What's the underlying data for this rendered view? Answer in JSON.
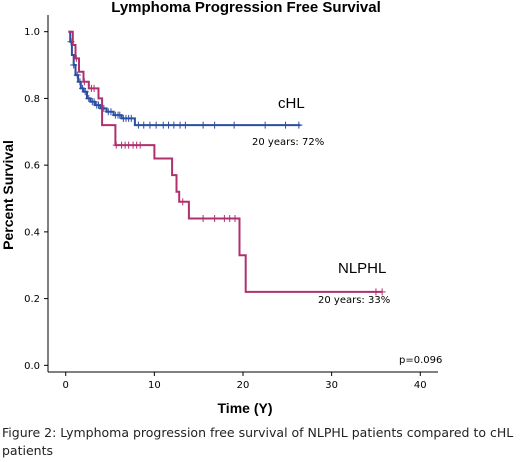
{
  "chart_data": {
    "type": "line",
    "title": "Lymphoma Progression Free Survival",
    "xlabel": "Time (Y)",
    "ylabel": "Percent Survival",
    "xlim": [
      -2,
      42
    ],
    "ylim": [
      -0.02,
      1.05
    ],
    "x_ticks": [
      0,
      10,
      20,
      30,
      40
    ],
    "y_ticks": [
      0.0,
      0.2,
      0.4,
      0.6,
      0.8,
      1.0
    ],
    "y_tick_labels": [
      "0.0",
      "0.2",
      "0.4",
      "0.6",
      "0.8",
      "1.0"
    ],
    "grid": false,
    "series": [
      {
        "name": "cHL",
        "color": "#2b4fa0",
        "label_annotation": "20 years: 72%",
        "steps": [
          [
            0.3,
            1.0
          ],
          [
            0.5,
            0.97
          ],
          [
            0.7,
            0.93
          ],
          [
            0.9,
            0.9
          ],
          [
            1.1,
            0.87
          ],
          [
            1.4,
            0.85
          ],
          [
            1.7,
            0.83
          ],
          [
            2.0,
            0.82
          ],
          [
            2.4,
            0.8
          ],
          [
            2.8,
            0.79
          ],
          [
            3.3,
            0.78
          ],
          [
            3.9,
            0.77
          ],
          [
            4.6,
            0.76
          ],
          [
            5.4,
            0.75
          ],
          [
            6.3,
            0.74
          ],
          [
            7.8,
            0.72
          ],
          [
            26.5,
            0.72
          ]
        ],
        "censored": [
          [
            0.6,
            0.97
          ],
          [
            0.9,
            0.9
          ],
          [
            1.3,
            0.87
          ],
          [
            1.6,
            0.85
          ],
          [
            1.9,
            0.83
          ],
          [
            2.2,
            0.82
          ],
          [
            2.6,
            0.8
          ],
          [
            3.0,
            0.79
          ],
          [
            3.2,
            0.79
          ],
          [
            3.5,
            0.78
          ],
          [
            3.7,
            0.78
          ],
          [
            4.1,
            0.77
          ],
          [
            4.3,
            0.77
          ],
          [
            4.8,
            0.76
          ],
          [
            5.1,
            0.76
          ],
          [
            5.6,
            0.75
          ],
          [
            5.9,
            0.75
          ],
          [
            6.1,
            0.75
          ],
          [
            6.5,
            0.74
          ],
          [
            6.8,
            0.74
          ],
          [
            7.1,
            0.74
          ],
          [
            7.4,
            0.74
          ],
          [
            8.2,
            0.72
          ],
          [
            8.8,
            0.72
          ],
          [
            9.5,
            0.72
          ],
          [
            10.2,
            0.72
          ],
          [
            11.0,
            0.72
          ],
          [
            11.6,
            0.72
          ],
          [
            12.2,
            0.72
          ],
          [
            12.9,
            0.72
          ],
          [
            13.5,
            0.72
          ],
          [
            15.5,
            0.72
          ],
          [
            16.8,
            0.72
          ],
          [
            19.0,
            0.72
          ],
          [
            22.5,
            0.72
          ],
          [
            24.8,
            0.72
          ],
          [
            26.3,
            0.72
          ]
        ]
      },
      {
        "name": "NLPHL",
        "color": "#b0306e",
        "label_annotation": "20 years: 33%",
        "steps": [
          [
            0.3,
            1.0
          ],
          [
            0.8,
            0.96
          ],
          [
            1.1,
            0.92
          ],
          [
            1.5,
            0.88
          ],
          [
            2.0,
            0.85
          ],
          [
            2.6,
            0.83
          ],
          [
            3.7,
            0.8
          ],
          [
            4.1,
            0.72
          ],
          [
            5.6,
            0.66
          ],
          [
            10.0,
            0.62
          ],
          [
            12.0,
            0.57
          ],
          [
            12.5,
            0.52
          ],
          [
            12.8,
            0.49
          ],
          [
            13.9,
            0.44
          ],
          [
            19.6,
            0.33
          ],
          [
            20.3,
            0.22
          ],
          [
            35.7,
            0.22
          ]
        ],
        "censored": [
          [
            1.2,
            0.92
          ],
          [
            2.1,
            0.85
          ],
          [
            2.9,
            0.83
          ],
          [
            3.2,
            0.83
          ],
          [
            5.7,
            0.66
          ],
          [
            6.3,
            0.66
          ],
          [
            6.7,
            0.66
          ],
          [
            7.1,
            0.66
          ],
          [
            7.6,
            0.66
          ],
          [
            8.0,
            0.66
          ],
          [
            8.4,
            0.66
          ],
          [
            13.2,
            0.49
          ],
          [
            15.5,
            0.44
          ],
          [
            16.8,
            0.44
          ],
          [
            17.9,
            0.44
          ],
          [
            18.5,
            0.44
          ],
          [
            19.1,
            0.44
          ],
          [
            35.0,
            0.22
          ],
          [
            35.7,
            0.22
          ]
        ]
      }
    ],
    "p_value": "p=0.096"
  },
  "caption": "Figure 2: Lymphoma progression free survival of NLPHL patients compared to cHL patients"
}
